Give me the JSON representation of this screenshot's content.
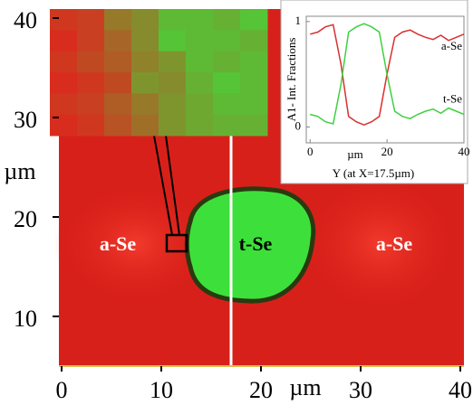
{
  "chart_data": [
    {
      "type": "map",
      "xlim": [
        0,
        40
      ],
      "ylim": [
        5,
        40
      ],
      "xticks": [
        0,
        10,
        20,
        30,
        40
      ],
      "yticks": [
        10,
        20,
        30,
        40
      ],
      "xlabel": "µm",
      "ylabel": "µm",
      "annotations": [
        "a-Se",
        "t-Se",
        "a-Se"
      ]
    },
    {
      "type": "heatmap",
      "colors": [
        "#e0241c",
        "#3de03a"
      ],
      "values": [
        [
          0.1,
          0.15,
          0.45,
          0.55,
          0.8,
          0.8,
          0.75,
          0.85
        ],
        [
          0.05,
          0.15,
          0.35,
          0.55,
          0.85,
          0.8,
          0.8,
          0.75
        ],
        [
          0.1,
          0.2,
          0.3,
          0.5,
          0.6,
          0.8,
          0.75,
          0.8
        ],
        [
          0.05,
          0.1,
          0.2,
          0.6,
          0.55,
          0.75,
          0.85,
          0.8
        ],
        [
          0.1,
          0.15,
          0.3,
          0.45,
          0.6,
          0.7,
          0.8,
          0.8
        ],
        [
          0.05,
          0.1,
          0.25,
          0.4,
          0.6,
          0.7,
          0.75,
          0.75
        ]
      ]
    },
    {
      "type": "line",
      "xlabel": "Y (at X=17.5µm)",
      "xunit": "µm",
      "ylabel": "A1- Int. Fractions",
      "x": [
        0,
        2,
        4,
        6,
        8,
        10,
        12,
        14,
        16,
        18,
        20,
        22,
        24,
        26,
        28,
        30,
        32,
        34,
        36,
        38,
        40
      ],
      "xlim": [
        -1,
        40
      ],
      "ylim": [
        -0.15,
        1.05
      ],
      "xticks": [
        0,
        20,
        40
      ],
      "yticks": [
        0,
        1
      ],
      "series": [
        {
          "name": "a-Se",
          "color": "#d83030",
          "values": [
            0.88,
            0.9,
            0.95,
            0.97,
            0.6,
            0.1,
            0.05,
            0.02,
            0.05,
            0.1,
            0.5,
            0.85,
            0.9,
            0.92,
            0.88,
            0.85,
            0.83,
            0.87,
            0.82,
            0.85,
            0.88
          ]
        },
        {
          "name": "t-Se",
          "color": "#40d040",
          "values": [
            0.12,
            0.1,
            0.05,
            0.03,
            0.4,
            0.9,
            0.95,
            0.98,
            0.95,
            0.9,
            0.5,
            0.15,
            0.1,
            0.08,
            0.12,
            0.15,
            0.17,
            0.13,
            0.18,
            0.15,
            0.12
          ]
        }
      ]
    }
  ]
}
